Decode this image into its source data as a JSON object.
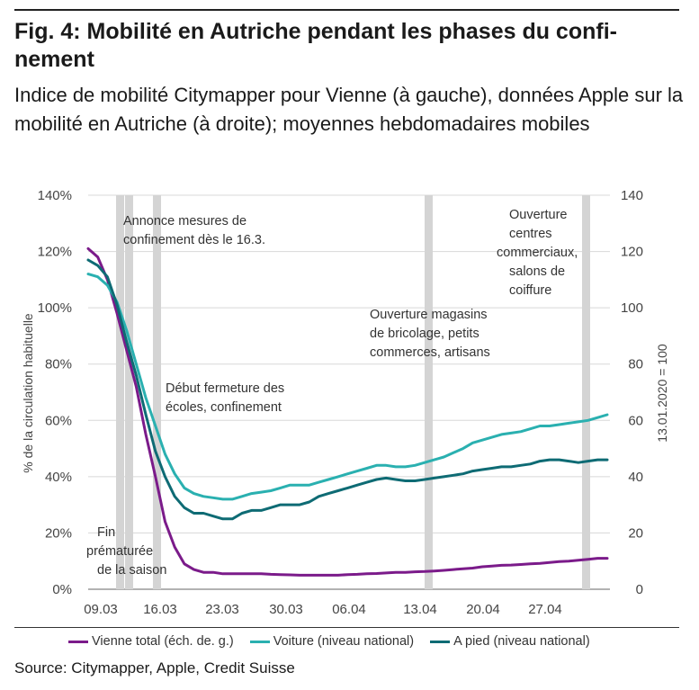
{
  "header": {
    "title": "Fig. 4: Mobilité en Autriche pendant les phases du confi-nement",
    "subtitle": "Indice de mobilité Citymapper pour Vienne (à gauche), données Apple sur la mobilité en Autriche (à droite); moyennes hebdomadaires mobiles"
  },
  "source": "Source: Citymapper, Apple, Credit Suisse",
  "chart_data": {
    "type": "line",
    "x_ticks": [
      "09.03",
      "16.03",
      "23.03",
      "30.03",
      "06.04",
      "13.04",
      "20.04",
      "27.04"
    ],
    "y_left": {
      "label": "% de la circulation habituelle",
      "ticks": [
        "0%",
        "20%",
        "40%",
        "60%",
        "80%",
        "100%",
        "120%",
        "140%"
      ],
      "range": [
        0,
        140
      ]
    },
    "y_right": {
      "label": "13.01.2020 = 100",
      "ticks": [
        "0",
        "20",
        "40",
        "60",
        "80",
        "100",
        "120",
        "140"
      ],
      "range": [
        0,
        140
      ]
    },
    "grid": "horizontal",
    "legend_position": "bottom",
    "series": [
      {
        "name": "Vienne total (éch. de. g.)",
        "color": "#7b1b8a",
        "axis": "left",
        "values": [
          121,
          118,
          110,
          98,
          85,
          72,
          55,
          40,
          24,
          15,
          9,
          7,
          6,
          6,
          5.5,
          5.5,
          5.5,
          5.5,
          5.5,
          5.3,
          5.2,
          5.1,
          5,
          5,
          5,
          5,
          5,
          5.2,
          5.3,
          5.5,
          5.6,
          5.8,
          6,
          6,
          6.2,
          6.3,
          6.5,
          6.7,
          7,
          7.3,
          7.5,
          8,
          8.2,
          8.5,
          8.6,
          8.8,
          9,
          9.2,
          9.5,
          9.8,
          10,
          10.3,
          10.6,
          11,
          11
        ]
      },
      {
        "name": "Voiture (niveau national)",
        "color": "#2ab0b0",
        "axis": "right",
        "values": [
          112,
          111,
          108,
          102,
          92,
          80,
          68,
          58,
          48,
          41,
          36,
          34,
          33,
          32.5,
          32,
          32,
          33,
          34,
          34.5,
          35,
          36,
          37,
          37,
          37,
          38,
          39,
          40,
          41,
          42,
          43,
          44,
          44,
          43.5,
          43.5,
          44,
          45,
          46,
          47,
          48.5,
          50,
          52,
          53,
          54,
          55,
          55.5,
          56,
          57,
          58,
          58,
          58.5,
          59,
          59.5,
          60,
          61,
          62
        ]
      },
      {
        "name": "A pied (niveau national)",
        "color": "#0e6b74",
        "axis": "right",
        "values": [
          117,
          115,
          111,
          101,
          88,
          76,
          62,
          49,
          40,
          33,
          29,
          27,
          27,
          26,
          25,
          25,
          27,
          28,
          28,
          29,
          30,
          30,
          30,
          31,
          33,
          34,
          35,
          36,
          37,
          38,
          39,
          39.5,
          39,
          38.5,
          38.5,
          39,
          39.5,
          40,
          40.5,
          41,
          42,
          42.5,
          43,
          43.5,
          43.5,
          44,
          44.5,
          45.5,
          46,
          46,
          45.5,
          45,
          45.5,
          46,
          46
        ]
      }
    ],
    "annotations": [
      {
        "lines": [
          "Annonce mesures de",
          "confinement dès le 16.3."
        ]
      },
      {
        "lines": [
          "Début fermeture des",
          "écoles, confinement"
        ]
      },
      {
        "lines": [
          "Fin",
          "prématurée",
          "de la saison"
        ]
      },
      {
        "lines": [
          "Ouverture magasins",
          "de bricolage, petits",
          "commerces, artisans"
        ]
      },
      {
        "lines": [
          "Ouverture",
          "centres",
          "commerciaux,",
          "salons de",
          "coiffure"
        ]
      }
    ],
    "event_bands": [
      "11.03",
      "13.03",
      "16.03",
      "14.04",
      "01.05"
    ]
  }
}
